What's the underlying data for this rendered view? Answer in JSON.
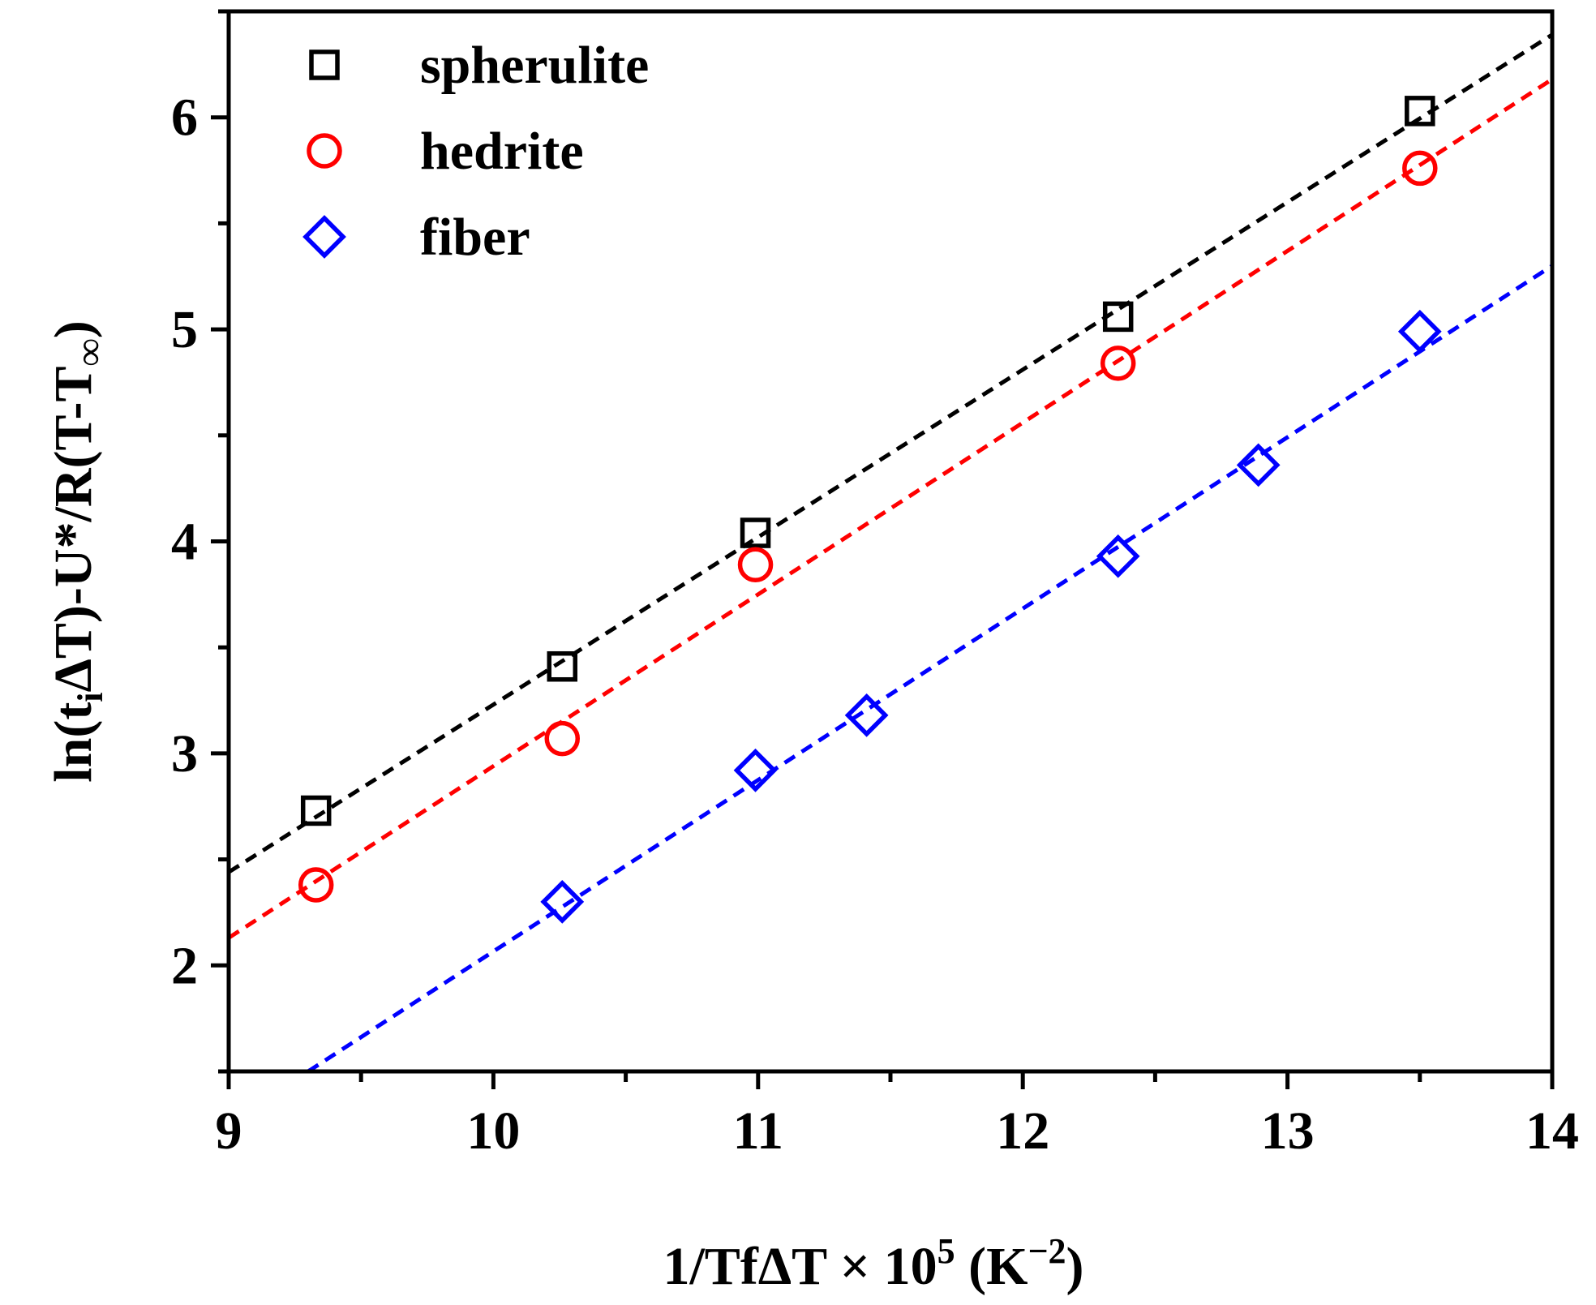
{
  "chart_data": {
    "type": "scatter",
    "xlabel": {
      "main": "1/TfΔT × 10",
      "exponent": "5",
      "unit_open": " (K",
      "unit_exponent": "−2",
      "unit_close": ")"
    },
    "ylabel": {
      "p1": "ln(t",
      "sub": "i",
      "p2": "ΔT)-U*/R(T-T",
      "sub2": "∞",
      "p3": ")"
    },
    "xlim": [
      9,
      14
    ],
    "ylim": [
      1.5,
      6.5
    ],
    "x_ticks": [
      9,
      10,
      11,
      12,
      13,
      14
    ],
    "x_tick_labels": [
      "9",
      "10",
      "11",
      "12",
      "13",
      "14"
    ],
    "y_ticks": [
      2,
      3,
      4,
      5,
      6
    ],
    "y_tick_labels": [
      "2",
      "3",
      "4",
      "5",
      "6"
    ],
    "x_minor_step": 0.5,
    "y_minor_step": 0.5,
    "grid": false,
    "legend_position": "top-left",
    "series": [
      {
        "name": "spherulite",
        "marker": "square",
        "color": "#000000",
        "x": [
          9.33,
          10.26,
          10.99,
          12.36,
          13.5
        ],
        "y": [
          2.73,
          3.41,
          4.04,
          5.06,
          6.03
        ],
        "fit": {
          "x": [
            9.0,
            14.0
          ],
          "y": [
            2.44,
            6.39
          ]
        }
      },
      {
        "name": "hedrite",
        "marker": "circle",
        "color": "#ff0000",
        "x": [
          9.33,
          10.26,
          10.99,
          12.36,
          13.5
        ],
        "y": [
          2.38,
          3.07,
          3.89,
          4.84,
          5.76
        ],
        "fit": {
          "x": [
            9.0,
            14.0
          ],
          "y": [
            2.13,
            6.18
          ]
        }
      },
      {
        "name": "fiber",
        "marker": "diamond",
        "color": "#0000ff",
        "x": [
          10.26,
          10.99,
          11.41,
          12.36,
          12.89,
          13.5
        ],
        "y": [
          2.3,
          2.92,
          3.18,
          3.93,
          4.36,
          4.99
        ],
        "fit": {
          "x": [
            9.3,
            14.0
          ],
          "y": [
            1.5,
            5.3
          ]
        }
      }
    ]
  }
}
